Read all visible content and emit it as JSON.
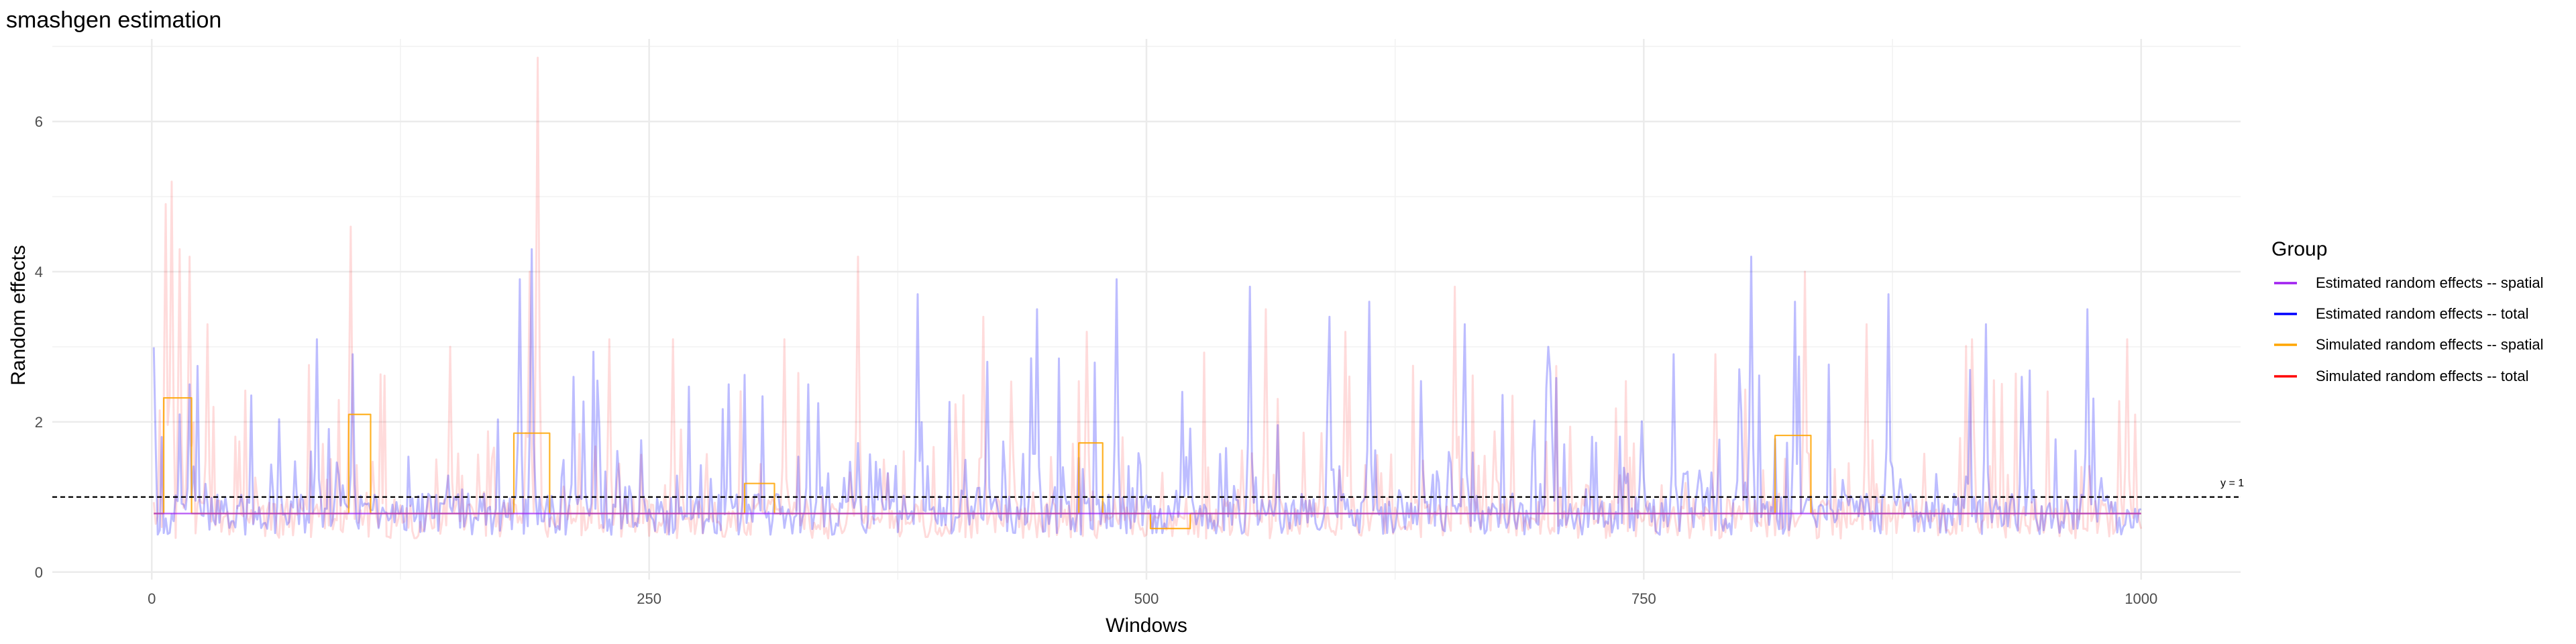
{
  "chart_data": {
    "type": "line",
    "title": "smashgen estimation",
    "xlabel": "Windows",
    "ylabel": "Random effects",
    "xlim": [
      -50,
      1050
    ],
    "ylim": [
      -0.1,
      7.1
    ],
    "x_ticks": [
      0,
      250,
      500,
      750,
      1000
    ],
    "x_tick_labels": [
      "0",
      "250",
      "500",
      "750",
      "1000"
    ],
    "y_ticks": [
      0,
      2,
      4,
      6
    ],
    "y_tick_labels": [
      "0",
      "2",
      "4",
      "6"
    ],
    "grid": true,
    "legend_position": "right",
    "legend_title": "Group",
    "reference_line": {
      "y": 1,
      "style": "dashed",
      "label": "y = 1"
    },
    "n_windows": 1000,
    "series": [
      {
        "name": "Estimated random effects -- spatial",
        "color": "#a020f0",
        "style": "step",
        "points": [
          [
            1,
            0.78
          ],
          [
            1000,
            0.78
          ]
        ]
      },
      {
        "name": "Estimated random effects -- total",
        "color": "#0000ff",
        "style": "noisy-line",
        "baseline": 0.8,
        "peaks": [
          [
            14,
            2.1
          ],
          [
            19,
            2.5
          ],
          [
            83,
            3.1
          ],
          [
            101,
            2.9
          ],
          [
            185,
            3.9
          ],
          [
            191,
            4.3
          ],
          [
            212,
            2.6
          ],
          [
            290,
            2.5
          ],
          [
            330,
            2.5
          ],
          [
            385,
            3.7
          ],
          [
            420,
            2.8
          ],
          [
            445,
            3.5
          ],
          [
            485,
            3.9
          ],
          [
            518,
            2.4
          ],
          [
            552,
            3.8
          ],
          [
            592,
            3.4
          ],
          [
            612,
            3.6
          ],
          [
            660,
            3.3
          ],
          [
            702,
            3.0
          ],
          [
            765,
            2.9
          ],
          [
            798,
            2.7
          ],
          [
            804,
            4.2
          ],
          [
            826,
            3.6
          ],
          [
            873,
            3.7
          ],
          [
            922,
            3.3
          ],
          [
            940,
            2.6
          ],
          [
            973,
            3.5
          ]
        ]
      },
      {
        "name": "Simulated random effects -- spatial",
        "color": "#ffa500",
        "style": "step",
        "points": [
          [
            1,
            0.78
          ],
          [
            6,
            0.78
          ],
          [
            6,
            2.32
          ],
          [
            20,
            2.32
          ],
          [
            20,
            0.78
          ],
          [
            99,
            0.78
          ],
          [
            99,
            2.1
          ],
          [
            110,
            2.1
          ],
          [
            110,
            0.78
          ],
          [
            182,
            0.78
          ],
          [
            182,
            1.85
          ],
          [
            200,
            1.85
          ],
          [
            200,
            0.78
          ],
          [
            298,
            0.78
          ],
          [
            298,
            1.18
          ],
          [
            313,
            1.18
          ],
          [
            313,
            0.78
          ],
          [
            466,
            0.78
          ],
          [
            466,
            1.72
          ],
          [
            478,
            1.72
          ],
          [
            478,
            0.78
          ],
          [
            502,
            0.78
          ],
          [
            502,
            0.58
          ],
          [
            522,
            0.58
          ],
          [
            522,
            0.78
          ],
          [
            816,
            0.78
          ],
          [
            816,
            1.82
          ],
          [
            834,
            1.82
          ],
          [
            834,
            0.78
          ],
          [
            1000,
            0.78
          ]
        ]
      },
      {
        "name": "Simulated random effects -- total",
        "color": "#ff0000",
        "style": "noisy-line",
        "baseline": 0.75,
        "peaks": [
          [
            7,
            4.9
          ],
          [
            10,
            5.2
          ],
          [
            14,
            4.3
          ],
          [
            19,
            4.2
          ],
          [
            28,
            3.3
          ],
          [
            100,
            4.6
          ],
          [
            150,
            3.0
          ],
          [
            190,
            4.0
          ],
          [
            194,
            6.85
          ],
          [
            230,
            3.1
          ],
          [
            262,
            3.1
          ],
          [
            318,
            3.1
          ],
          [
            355,
            4.2
          ],
          [
            418,
            3.4
          ],
          [
            470,
            3.2
          ],
          [
            560,
            3.5
          ],
          [
            600,
            3.2
          ],
          [
            655,
            3.8
          ],
          [
            786,
            2.9
          ],
          [
            831,
            4.0
          ],
          [
            862,
            3.3
          ],
          [
            915,
            3.1
          ],
          [
            993,
            3.1
          ]
        ]
      }
    ]
  }
}
